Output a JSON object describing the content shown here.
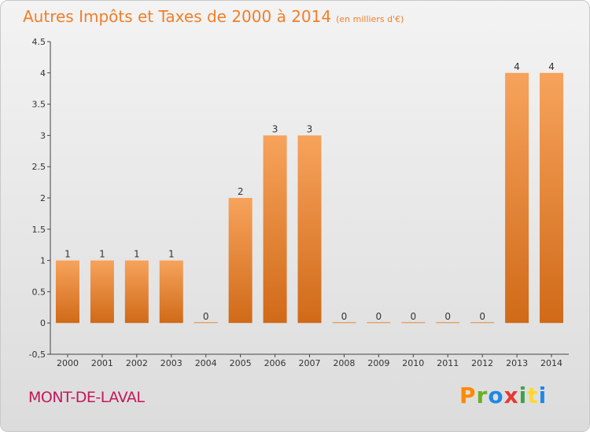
{
  "header": {
    "title": "Autres Impôts et Taxes de 2000 à 2014",
    "subtitle": "(en milliers d'€)"
  },
  "footer": {
    "commune": "MONT-DE-LAVAL",
    "logo": [
      "P",
      "r",
      "o",
      "x",
      "i",
      "t",
      "i"
    ]
  },
  "colors": {
    "title": "#f07f2a",
    "commune": "#c2185b",
    "bar_top": "#f7a35c",
    "bar_bottom": "#d06a18"
  },
  "chart_data": {
    "type": "bar",
    "categories": [
      "2000",
      "2001",
      "2002",
      "2003",
      "2004",
      "2005",
      "2006",
      "2007",
      "2008",
      "2009",
      "2010",
      "2011",
      "2012",
      "2013",
      "2014"
    ],
    "values": [
      1,
      1,
      1,
      1,
      0,
      2,
      3,
      3,
      0,
      0,
      0,
      0,
      0,
      4,
      4
    ],
    "data_labels": [
      "1",
      "1",
      "1",
      "1",
      "0",
      "2",
      "3",
      "3",
      "0",
      "0",
      "0",
      "0",
      "0",
      "4",
      "4"
    ],
    "title": "Autres Impôts et Taxes de 2000 à 2014",
    "xlabel": "",
    "ylabel": "",
    "ylim": [
      -0.5,
      4.5
    ],
    "yticks": [
      -0.5,
      0,
      0.5,
      1,
      1.5,
      2,
      2.5,
      3,
      3.5,
      4,
      4.5
    ],
    "ytick_labels": [
      "-0,5",
      "0",
      "0.5",
      "1",
      "1.5",
      "2",
      "2.5",
      "3",
      "3.5",
      "4",
      "4.5"
    ],
    "grid": false,
    "legend": "none"
  }
}
